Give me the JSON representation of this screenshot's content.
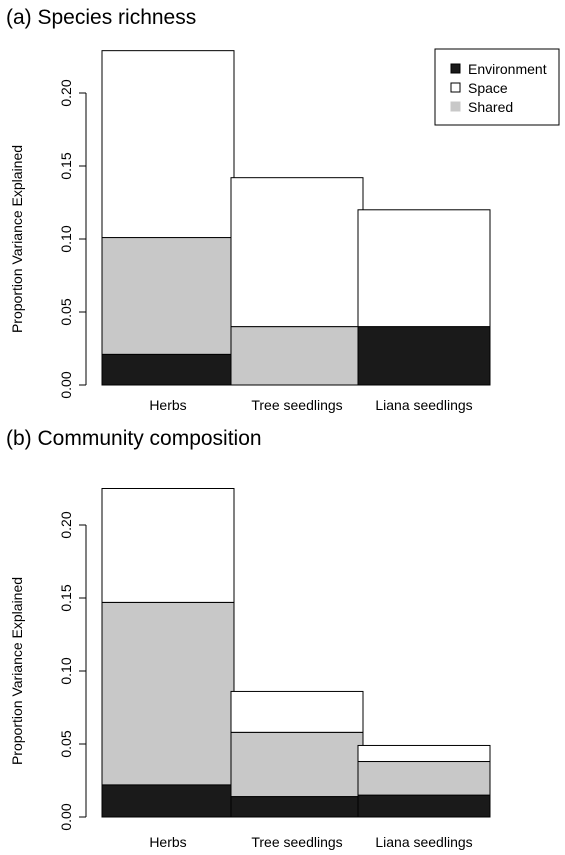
{
  "colors": {
    "environment": "#1a1a1a",
    "space": "#ffffff",
    "shared": "#c8c8c8",
    "axis": "#000000"
  },
  "chart_data": [
    {
      "type": "bar",
      "stacked": true,
      "title": "(a) Species richness",
      "xlabel": "",
      "ylabel": "Proportion Variance Explained",
      "categories": [
        "Herbs",
        "Tree seedlings",
        "Liana seedlings"
      ],
      "ylim": [
        0,
        0.23
      ],
      "yticks": [
        0.0,
        0.05,
        0.1,
        0.15,
        0.2
      ],
      "ytick_labels": [
        "0.00",
        "0.05",
        "0.10",
        "0.15",
        "0.20"
      ],
      "grid": false,
      "legend": {
        "position": "top-right",
        "entries": [
          "Environment",
          "Space",
          "Shared"
        ]
      },
      "series": [
        {
          "name": "Environment",
          "color": "#1a1a1a",
          "values": [
            0.021,
            0.0,
            0.04
          ]
        },
        {
          "name": "Shared",
          "color": "#c8c8c8",
          "values": [
            0.08,
            0.04,
            0.0
          ]
        },
        {
          "name": "Space",
          "color": "#ffffff",
          "values": [
            0.128,
            0.102,
            0.08
          ]
        }
      ]
    },
    {
      "type": "bar",
      "stacked": true,
      "title": "(b) Community composition",
      "xlabel": "",
      "ylabel": "Proportion Variance Explained",
      "categories": [
        "Herbs",
        "Tree seedlings",
        "Liana seedlings"
      ],
      "ylim": [
        0,
        0.23
      ],
      "yticks": [
        0.0,
        0.05,
        0.1,
        0.15,
        0.2
      ],
      "ytick_labels": [
        "0.00",
        "0.05",
        "0.10",
        "0.15",
        "0.20"
      ],
      "grid": false,
      "series": [
        {
          "name": "Environment",
          "color": "#1a1a1a",
          "values": [
            0.022,
            0.014,
            0.015
          ]
        },
        {
          "name": "Shared",
          "color": "#c8c8c8",
          "values": [
            0.125,
            0.044,
            0.023
          ]
        },
        {
          "name": "Space",
          "color": "#ffffff",
          "values": [
            0.078,
            0.028,
            0.011
          ]
        }
      ]
    }
  ]
}
